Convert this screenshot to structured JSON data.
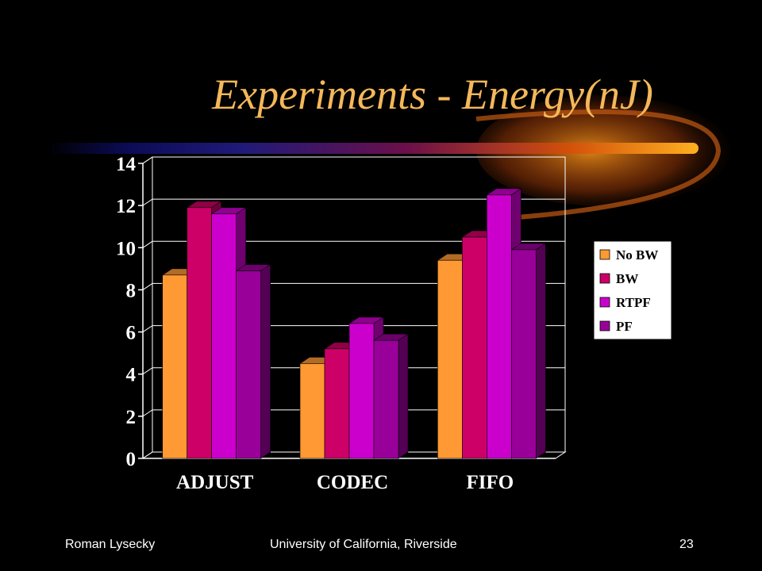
{
  "slide": {
    "title": "Experiments - Energy(nJ)",
    "author": "Roman Lysecky",
    "organization": "University of California, Riverside",
    "page_number": "23"
  },
  "chart_data": {
    "type": "bar",
    "title": "",
    "xlabel": "",
    "ylabel": "",
    "categories": [
      "ADJUST",
      "CODEC",
      "FIFO"
    ],
    "series": [
      {
        "name": "No BW",
        "values": [
          8.7,
          4.5,
          9.4
        ],
        "color": "#ff9933"
      },
      {
        "name": "BW",
        "values": [
          11.9,
          5.2,
          10.5
        ],
        "color": "#cc0066"
      },
      {
        "name": "RTPF",
        "values": [
          11.6,
          6.4,
          12.5
        ],
        "color": "#cc00cc"
      },
      {
        "name": "PF",
        "values": [
          8.9,
          5.6,
          9.9
        ],
        "color": "#990099"
      }
    ],
    "ylim": [
      0,
      14
    ],
    "yticks": [
      "0",
      "2",
      "4",
      "6",
      "8",
      "10",
      "12",
      "14"
    ],
    "grid": true,
    "legend_position": "right"
  }
}
